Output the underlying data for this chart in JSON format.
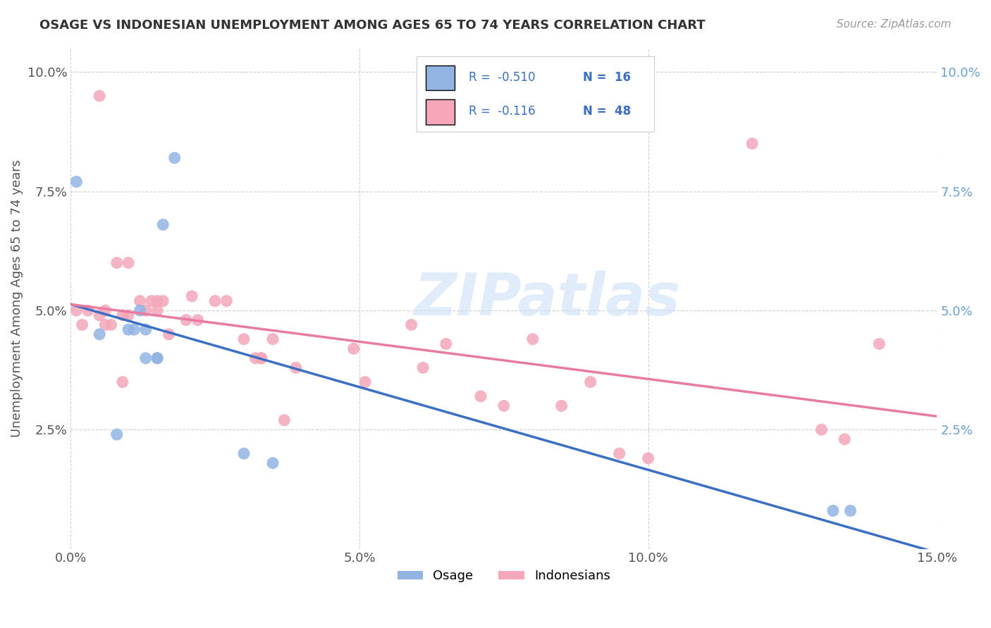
{
  "title": "OSAGE VS INDONESIAN UNEMPLOYMENT AMONG AGES 65 TO 74 YEARS CORRELATION CHART",
  "source": "Source: ZipAtlas.com",
  "ylabel": "Unemployment Among Ages 65 to 74 years",
  "xlim": [
    0.0,
    0.15
  ],
  "ylim": [
    0.0,
    0.105
  ],
  "xticks": [
    0.0,
    0.05,
    0.1,
    0.15
  ],
  "yticks": [
    0.0,
    0.025,
    0.05,
    0.075,
    0.1
  ],
  "xticklabels": [
    "0.0%",
    "5.0%",
    "10.0%",
    "15.0%"
  ],
  "yticklabels": [
    "",
    "2.5%",
    "5.0%",
    "7.5%",
    "10.0%"
  ],
  "legend_labels": [
    "Osage",
    "Indonesians"
  ],
  "osage_R": "-0.510",
  "osage_N": "16",
  "indonesian_R": "-0.116",
  "indonesian_N": "48",
  "osage_color": "#92b4e3",
  "indonesian_color": "#f4a7b9",
  "osage_line_color": "#3a6fc4",
  "indonesian_line_color": "#e87ca0",
  "background_color": "#ffffff",
  "grid_color": "#cccccc",
  "watermark": "ZIPatlas",
  "osage_x": [
    0.001,
    0.005,
    0.008,
    0.01,
    0.011,
    0.012,
    0.013,
    0.013,
    0.015,
    0.015,
    0.016,
    0.018,
    0.03,
    0.035,
    0.132,
    0.135
  ],
  "osage_y": [
    0.077,
    0.045,
    0.024,
    0.046,
    0.046,
    0.05,
    0.046,
    0.04,
    0.04,
    0.04,
    0.068,
    0.082,
    0.02,
    0.018,
    0.008,
    0.008
  ],
  "indonesian_x": [
    0.001,
    0.002,
    0.003,
    0.005,
    0.005,
    0.006,
    0.006,
    0.007,
    0.008,
    0.009,
    0.009,
    0.01,
    0.01,
    0.012,
    0.013,
    0.014,
    0.015,
    0.015,
    0.016,
    0.017,
    0.02,
    0.021,
    0.022,
    0.025,
    0.027,
    0.03,
    0.032,
    0.033,
    0.033,
    0.035,
    0.037,
    0.039,
    0.049,
    0.051,
    0.059,
    0.061,
    0.065,
    0.071,
    0.075,
    0.08,
    0.085,
    0.09,
    0.095,
    0.1,
    0.118,
    0.13,
    0.134,
    0.14
  ],
  "indonesian_y": [
    0.05,
    0.047,
    0.05,
    0.049,
    0.095,
    0.05,
    0.047,
    0.047,
    0.06,
    0.049,
    0.035,
    0.049,
    0.06,
    0.052,
    0.05,
    0.052,
    0.05,
    0.052,
    0.052,
    0.045,
    0.048,
    0.053,
    0.048,
    0.052,
    0.052,
    0.044,
    0.04,
    0.04,
    0.04,
    0.044,
    0.027,
    0.038,
    0.042,
    0.035,
    0.047,
    0.038,
    0.043,
    0.032,
    0.03,
    0.044,
    0.03,
    0.035,
    0.02,
    0.019,
    0.085,
    0.025,
    0.023,
    0.043
  ]
}
